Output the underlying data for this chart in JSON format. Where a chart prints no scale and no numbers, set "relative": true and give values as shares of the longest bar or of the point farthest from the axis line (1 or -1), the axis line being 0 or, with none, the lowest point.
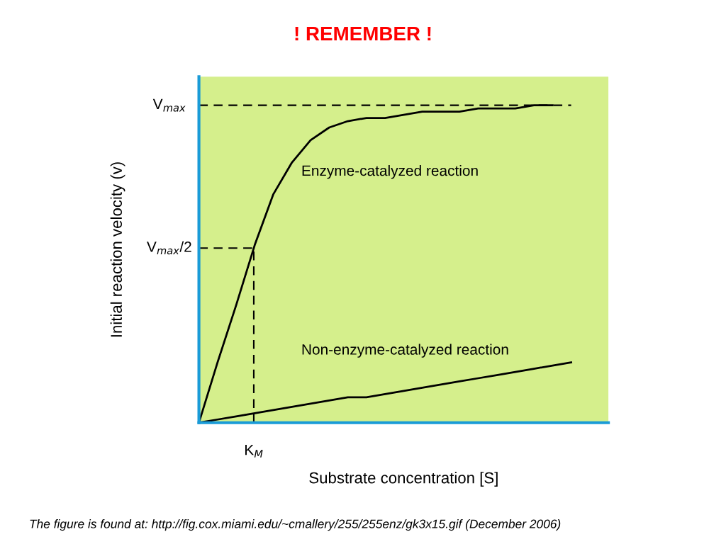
{
  "chart_data": {
    "type": "line",
    "title": "! REMEMBER !",
    "xlabel": "Substrate concentration [S]",
    "ylabel": "Initial reaction velocity (v)",
    "relative": true,
    "categories": [
      null,
      null,
      null,
      null,
      null,
      null,
      null,
      null,
      null,
      null,
      null,
      null,
      null,
      null,
      null,
      null,
      null,
      null,
      null,
      null,
      null
    ],
    "series": [
      {
        "name": "Enzyme-catalyzed reaction",
        "color": "#000000",
        "values": [
          0,
          0.19,
          0.37,
          0.56,
          0.72,
          0.82,
          0.89,
          0.93,
          0.95,
          0.96,
          0.96,
          0.97,
          0.98,
          0.98,
          0.98,
          0.99,
          0.99,
          0.99,
          1.0,
          1.0,
          null
        ]
      },
      {
        "name": "Non-enzyme-catalyzed reaction",
        "color": "#000000",
        "values": [
          0,
          0.01,
          0.02,
          0.03,
          0.04,
          0.05,
          0.06,
          0.07,
          0.08,
          0.08,
          0.09,
          0.1,
          0.11,
          0.12,
          0.13,
          0.14,
          0.15,
          0.16,
          0.17,
          0.18,
          0.19
        ]
      }
    ],
    "ref_lines": [
      {
        "axis": "y",
        "value": 1,
        "label": "V$_{max}$",
        "line_style": "dashed",
        "color": "#000000"
      },
      {
        "axis": "y",
        "value": 0.55,
        "label": "V$_{max}$/2",
        "line_style": "dashed",
        "color": "#000000"
      }
    ],
    "annotations": [
      "K$_{M}$",
      "The figure is found at: http://fig.cox.miami.edu/~cmallery/255/255enz/gk3x15.gif (December 2006)"
    ],
    "legend": false,
    "marker": "none",
    "line_style": "solid"
  }
}
